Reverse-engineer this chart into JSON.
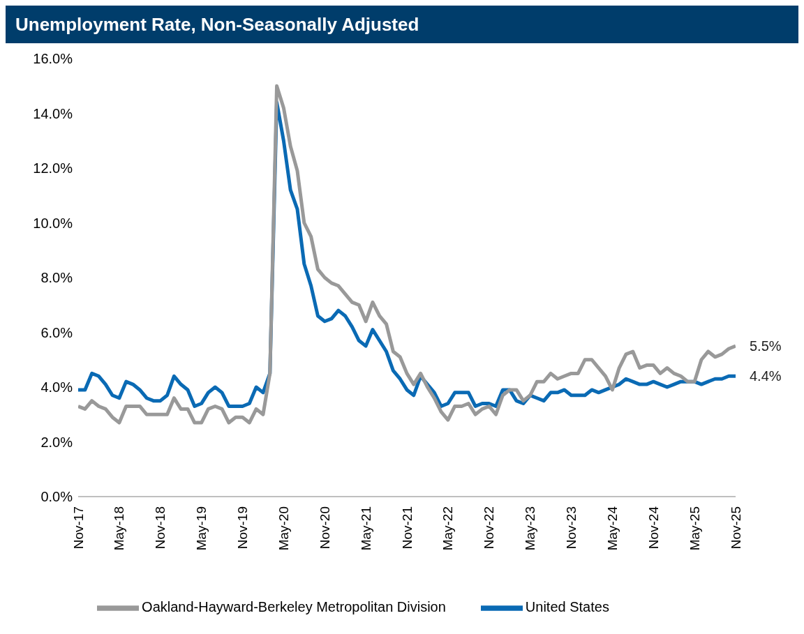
{
  "chart_data": {
    "type": "line",
    "title": "Unemployment Rate, Non-Seasonally Adjusted",
    "categories": [
      "Nov-17",
      null,
      null,
      null,
      null,
      null,
      "May-18",
      null,
      null,
      null,
      null,
      null,
      "Nov-18",
      null,
      null,
      null,
      null,
      null,
      "May-19",
      null,
      null,
      null,
      null,
      null,
      "Nov-19",
      null,
      null,
      null,
      null,
      null,
      "May-20",
      null,
      null,
      null,
      null,
      null,
      "Nov-20",
      null,
      null,
      null,
      null,
      null,
      "May-21",
      null,
      null,
      null,
      null,
      null,
      "Nov-21",
      null,
      null,
      null,
      null,
      null,
      "May-22",
      null,
      null,
      null,
      null,
      null,
      "Nov-22",
      null,
      null,
      null,
      null,
      null,
      "May-23",
      null,
      null,
      null,
      null,
      null,
      "Nov-23",
      null,
      null,
      null,
      null,
      null,
      "May-24",
      null,
      null,
      null,
      null,
      null,
      "Nov-24",
      null,
      null,
      null,
      null,
      null,
      "May-25",
      null,
      null,
      null,
      null,
      null,
      "Nov-25"
    ],
    "series": [
      {
        "name": "United States",
        "color": "#0a6ab4",
        "values": [
          3.9,
          3.9,
          4.5,
          4.4,
          4.1,
          3.7,
          3.6,
          4.2,
          4.1,
          3.9,
          3.6,
          3.5,
          3.5,
          3.7,
          4.4,
          4.1,
          3.9,
          3.3,
          3.4,
          3.8,
          4.0,
          3.8,
          3.3,
          3.3,
          3.3,
          3.4,
          4.0,
          3.8,
          4.5,
          14.4,
          13.0,
          11.2,
          10.5,
          8.5,
          7.7,
          6.6,
          6.4,
          6.5,
          6.8,
          6.6,
          6.2,
          5.7,
          5.5,
          6.1,
          5.7,
          5.3,
          4.6,
          4.3,
          3.9,
          3.7,
          4.4,
          4.1,
          3.8,
          3.3,
          3.4,
          3.8,
          3.8,
          3.8,
          3.3,
          3.4,
          3.4,
          3.3,
          3.9,
          3.9,
          3.5,
          3.4,
          3.7,
          3.6,
          3.5,
          3.8,
          3.8,
          3.9,
          3.7,
          3.7,
          3.7,
          3.9,
          3.8,
          3.9,
          4.0,
          4.1,
          4.3,
          4.2,
          4.1,
          4.1,
          4.2,
          4.1,
          4.0,
          4.1,
          4.2,
          4.2,
          4.2,
          4.1,
          4.2,
          4.3,
          4.3,
          4.4,
          4.4
        ],
        "value_labels": [
          null,
          null,
          null,
          null,
          null,
          null,
          null,
          null,
          null,
          null,
          null,
          null,
          null,
          null,
          null,
          null,
          null,
          null,
          null,
          null,
          null,
          null,
          null,
          null,
          null,
          null,
          null,
          null,
          null,
          null,
          null,
          null,
          null,
          null,
          null,
          null,
          null,
          null,
          null,
          null,
          null,
          null,
          null,
          null,
          null,
          null,
          null,
          null,
          null,
          null,
          null,
          null,
          null,
          null,
          null,
          null,
          null,
          null,
          null,
          null,
          null,
          null,
          null,
          null,
          null,
          null,
          null,
          null,
          null,
          null,
          null,
          null,
          null,
          null,
          null,
          null,
          null,
          null,
          null,
          null,
          null,
          null,
          null,
          null,
          null,
          null,
          null,
          null,
          null,
          null,
          null,
          null,
          null,
          null,
          null,
          null,
          "4.4%"
        ]
      },
      {
        "name": "Oakland-Hayward-Berkeley Metropolitan Division",
        "color": "#999999",
        "values": [
          3.3,
          3.2,
          3.5,
          3.3,
          3.2,
          2.9,
          2.7,
          3.3,
          3.3,
          3.3,
          3.0,
          3.0,
          3.0,
          3.0,
          3.6,
          3.2,
          3.2,
          2.7,
          2.7,
          3.2,
          3.3,
          3.2,
          2.7,
          2.9,
          2.9,
          2.7,
          3.2,
          3.0,
          4.5,
          15.0,
          14.2,
          12.8,
          11.9,
          10.0,
          9.5,
          8.3,
          8.0,
          7.8,
          7.7,
          7.4,
          7.1,
          7.0,
          6.4,
          7.1,
          6.6,
          6.3,
          5.3,
          5.1,
          4.5,
          4.1,
          4.5,
          4.0,
          3.6,
          3.1,
          2.8,
          3.3,
          3.3,
          3.4,
          3.0,
          3.2,
          3.3,
          3.0,
          3.7,
          3.9,
          3.9,
          3.5,
          3.7,
          4.2,
          4.2,
          4.5,
          4.3,
          4.4,
          4.5,
          4.5,
          5.0,
          5.0,
          4.7,
          4.4,
          3.9,
          4.7,
          5.2,
          5.3,
          4.7,
          4.8,
          4.8,
          4.5,
          4.7,
          4.5,
          4.4,
          4.2,
          4.2,
          5.0,
          5.3,
          5.1,
          5.2,
          5.4,
          5.5
        ],
        "value_labels": [
          null,
          null,
          null,
          null,
          null,
          null,
          null,
          null,
          null,
          null,
          null,
          null,
          null,
          null,
          null,
          null,
          null,
          null,
          null,
          null,
          null,
          null,
          null,
          null,
          null,
          null,
          null,
          null,
          null,
          null,
          null,
          null,
          null,
          null,
          null,
          null,
          null,
          null,
          null,
          null,
          null,
          null,
          null,
          null,
          null,
          null,
          null,
          null,
          null,
          null,
          null,
          null,
          null,
          null,
          null,
          null,
          null,
          null,
          null,
          null,
          null,
          null,
          null,
          null,
          null,
          null,
          null,
          null,
          null,
          null,
          null,
          null,
          null,
          null,
          null,
          null,
          null,
          null,
          null,
          null,
          null,
          null,
          null,
          null,
          null,
          null,
          null,
          null,
          null,
          null,
          null,
          null,
          null,
          null,
          null,
          null,
          "5.5%"
        ]
      }
    ],
    "ylim": [
      0,
      16
    ],
    "yticks": [
      {
        "value": 0,
        "label": "0.0%"
      },
      {
        "value": 2,
        "label": "2.0%"
      },
      {
        "value": 4,
        "label": "4.0%"
      },
      {
        "value": 6,
        "label": "6.0%"
      },
      {
        "value": 8,
        "label": "8.0%"
      },
      {
        "value": 10,
        "label": "10.0%"
      },
      {
        "value": 12,
        "label": "12.0%"
      },
      {
        "value": 14,
        "label": "14.0%"
      },
      {
        "value": 16,
        "label": "16.0%"
      }
    ],
    "grid": false,
    "legend": "bottom",
    "marker": "none",
    "line_style": "solid"
  }
}
